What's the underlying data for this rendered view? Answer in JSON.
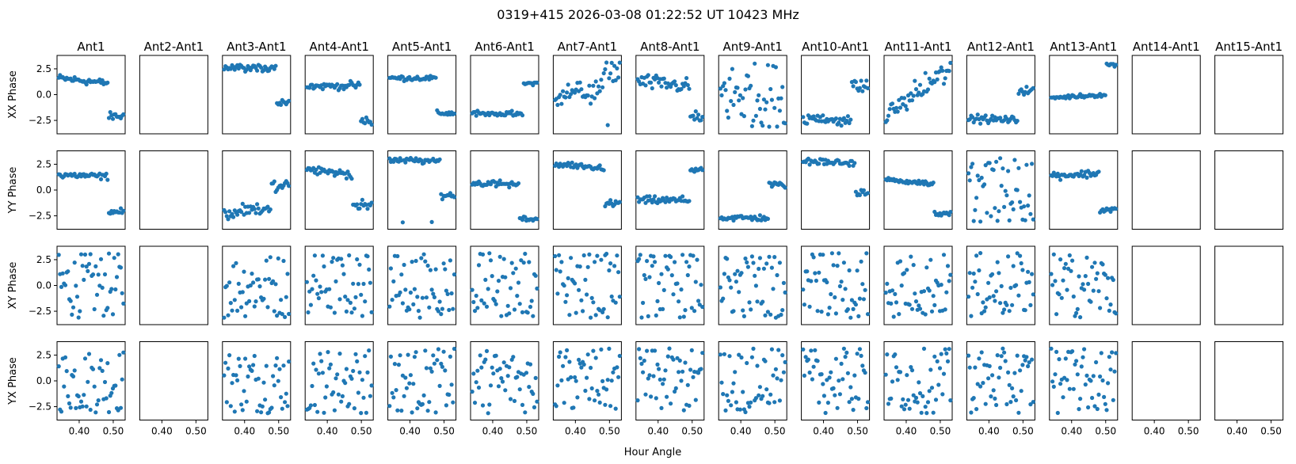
{
  "figure": {
    "title": "0319+415  2026-03-08 01:22:52 UT  10423 MHz",
    "xlabel": "Hour Angle"
  },
  "chart_data": {
    "type": "scatter",
    "columns": [
      "Ant1",
      "Ant2-Ant1",
      "Ant3-Ant1",
      "Ant4-Ant1",
      "Ant5-Ant1",
      "Ant6-Ant1",
      "Ant7-Ant1",
      "Ant8-Ant1",
      "Ant9-Ant1",
      "Ant10-Ant1",
      "Ant11-Ant1",
      "Ant12-Ant1",
      "Ant13-Ant1",
      "Ant14-Ant1",
      "Ant15-Ant1"
    ],
    "rows": [
      "XX Phase",
      "YY Phase",
      "XY Phase",
      "YX Phase"
    ],
    "xlim": [
      0.335,
      0.535
    ],
    "ylim": [
      -3.8,
      3.8
    ],
    "xticks": [
      0.4,
      0.5
    ],
    "xtick_labels": [
      "0.40",
      "0.50"
    ],
    "yticks": [
      2.5,
      0.0,
      -2.5
    ],
    "ytick_labels": [
      "2.5",
      "0.0",
      "−2.5"
    ],
    "x_range": [
      0.34,
      0.53
    ],
    "points_per_panel": 50,
    "marker_color": "#1f77b4",
    "empty_columns": [
      1,
      13,
      14
    ],
    "grid": false,
    "panel_trends": [
      [
        {
          "pattern": "drop",
          "levels": [
            1.6,
            1.1,
            -2.1
          ],
          "split": 0.77,
          "noise": 0.3
        },
        {
          "pattern": "drop",
          "levels": [
            1.5,
            1.3,
            -2.1
          ],
          "split": 0.77,
          "noise": 0.25
        },
        {
          "pattern": "random"
        },
        {
          "pattern": "random"
        }
      ],
      [
        {
          "pattern": "empty"
        },
        {
          "pattern": "empty"
        },
        {
          "pattern": "empty"
        },
        {
          "pattern": "empty"
        }
      ],
      [
        {
          "pattern": "wrap",
          "levels": [
            2.6,
            2.6,
            -0.8
          ],
          "split": 0.8,
          "noise": 0.3
        },
        {
          "pattern": "wrap",
          "levels": [
            -2.4,
            -1.8,
            0.3
          ],
          "split": 0.72,
          "noise": 0.5
        },
        {
          "pattern": "random"
        },
        {
          "pattern": "random"
        }
      ],
      [
        {
          "pattern": "drop",
          "levels": [
            0.8,
            0.9,
            -2.6
          ],
          "split": 0.82,
          "noise": 0.3
        },
        {
          "pattern": "drop",
          "levels": [
            2.0,
            1.5,
            -1.5
          ],
          "split": 0.7,
          "noise": 0.35
        },
        {
          "pattern": "random"
        },
        {
          "pattern": "random"
        }
      ],
      [
        {
          "pattern": "drop",
          "levels": [
            1.6,
            1.6,
            -1.8
          ],
          "split": 0.72,
          "noise": 0.2
        },
        {
          "pattern": "wrap",
          "levels": [
            2.9,
            2.8,
            -0.5
          ],
          "split": 0.78,
          "noise": 0.25
        },
        {
          "pattern": "random"
        },
        {
          "pattern": "random"
        }
      ],
      [
        {
          "pattern": "rise",
          "levels": [
            -1.8,
            -1.9,
            1.1
          ],
          "split": 0.78,
          "noise": 0.2
        },
        {
          "pattern": "drop",
          "levels": [
            0.7,
            0.5,
            -2.8
          ],
          "split": 0.72,
          "noise": 0.25
        },
        {
          "pattern": "random"
        },
        {
          "pattern": "random"
        }
      ],
      [
        {
          "pattern": "rise",
          "levels": [
            0.0,
            0.4,
            2.3
          ],
          "split": 0.75,
          "noise": 0.9
        },
        {
          "pattern": "drop",
          "levels": [
            2.5,
            2.1,
            -1.3
          ],
          "split": 0.76,
          "noise": 0.25
        },
        {
          "pattern": "random"
        },
        {
          "pattern": "random"
        }
      ],
      [
        {
          "pattern": "drop",
          "levels": [
            1.3,
            0.8,
            -2.2
          ],
          "split": 0.8,
          "noise": 0.6
        },
        {
          "pattern": "rise",
          "levels": [
            -1.0,
            -1.0,
            2.0
          ],
          "split": 0.8,
          "noise": 0.3
        },
        {
          "pattern": "random"
        },
        {
          "pattern": "random"
        }
      ],
      [
        {
          "pattern": "random"
        },
        {
          "pattern": "wrap",
          "levels": [
            -2.7,
            -2.7,
            0.5
          ],
          "split": 0.75,
          "noise": 0.25
        },
        {
          "pattern": "random"
        },
        {
          "pattern": "random"
        }
      ],
      [
        {
          "pattern": "rise",
          "levels": [
            -2.4,
            -2.4,
            0.8
          ],
          "split": 0.75,
          "noise": 0.45
        },
        {
          "pattern": "wrap",
          "levels": [
            2.8,
            2.6,
            -0.3
          ],
          "split": 0.8,
          "noise": 0.25
        },
        {
          "pattern": "random"
        },
        {
          "pattern": "random"
        }
      ],
      [
        {
          "pattern": "ramp",
          "levels": [
            -2.0,
            2.5,
            2.5
          ],
          "split": 1.0,
          "noise": 0.9
        },
        {
          "pattern": "drop",
          "levels": [
            1.0,
            0.6,
            -2.3
          ],
          "split": 0.75,
          "noise": 0.2
        },
        {
          "pattern": "random"
        },
        {
          "pattern": "random"
        }
      ],
      [
        {
          "pattern": "rise",
          "levels": [
            -2.3,
            -2.5,
            0.4
          ],
          "split": 0.76,
          "noise": 0.3
        },
        {
          "pattern": "random"
        },
        {
          "pattern": "random"
        },
        {
          "pattern": "random"
        }
      ],
      [
        {
          "pattern": "rise",
          "levels": [
            -0.3,
            0.0,
            2.9
          ],
          "split": 0.84,
          "noise": 0.15
        },
        {
          "pattern": "drop",
          "levels": [
            1.4,
            1.6,
            -1.9
          ],
          "split": 0.75,
          "noise": 0.3
        },
        {
          "pattern": "random"
        },
        {
          "pattern": "random"
        }
      ],
      [
        {
          "pattern": "empty"
        },
        {
          "pattern": "empty"
        },
        {
          "pattern": "empty"
        },
        {
          "pattern": "empty"
        }
      ],
      [
        {
          "pattern": "empty"
        },
        {
          "pattern": "empty"
        },
        {
          "pattern": "empty"
        },
        {
          "pattern": "empty"
        }
      ]
    ]
  }
}
